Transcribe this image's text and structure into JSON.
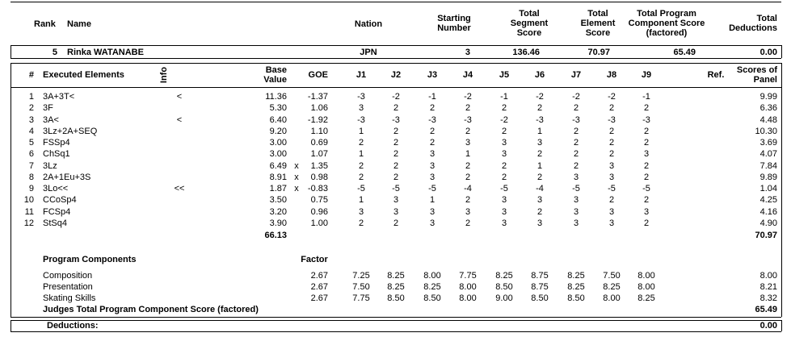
{
  "header": {
    "rank": "Rank",
    "name": "Name",
    "nation": "Nation",
    "starting_number": "Starting Number",
    "total_segment_score": "Total Segment Score",
    "total_element_score": "Total Element Score",
    "total_pcs": "Total Program Component Score (factored)",
    "total_deductions": "Total Deductions"
  },
  "skater": {
    "rank": "5",
    "name": "Rinka WATANABE",
    "nation": "JPN",
    "starting_number": "3",
    "total_segment_score": "136.46",
    "total_element_score": "70.97",
    "total_pcs": "65.49",
    "total_deductions": "0.00"
  },
  "elements": {
    "columns": {
      "num": "#",
      "element": "Executed Elements",
      "info": "Info",
      "base": "Base Value",
      "goe": "GOE",
      "judges": [
        "J1",
        "J2",
        "J3",
        "J4",
        "J5",
        "J6",
        "J7",
        "J8",
        "J9"
      ],
      "ref": "Ref.",
      "score": "Scores of Panel"
    },
    "rows": [
      {
        "num": "1",
        "element": "3A+3T<",
        "info": "<",
        "base": "11.36",
        "goe": "-1.37",
        "judges": [
          "-3",
          "-2",
          "-1",
          "-2",
          "-1",
          "-2",
          "-2",
          "-2",
          "-1"
        ],
        "score": "9.99"
      },
      {
        "num": "2",
        "element": "3F",
        "base": "5.30",
        "goe": "1.06",
        "judges": [
          "3",
          "2",
          "2",
          "2",
          "2",
          "2",
          "2",
          "2",
          "2"
        ],
        "score": "6.36"
      },
      {
        "num": "3",
        "element": "3A<",
        "info": "<",
        "base": "6.40",
        "goe": "-1.92",
        "judges": [
          "-3",
          "-3",
          "-3",
          "-3",
          "-2",
          "-3",
          "-3",
          "-3",
          "-3"
        ],
        "score": "4.48"
      },
      {
        "num": "4",
        "element": "3Lz+2A+SEQ",
        "base": "9.20",
        "goe": "1.10",
        "judges": [
          "1",
          "2",
          "2",
          "2",
          "2",
          "1",
          "2",
          "2",
          "2"
        ],
        "score": "10.30"
      },
      {
        "num": "5",
        "element": "FSSp4",
        "base": "3.00",
        "goe": "0.69",
        "judges": [
          "2",
          "2",
          "2",
          "3",
          "3",
          "3",
          "2",
          "2",
          "2"
        ],
        "score": "3.69"
      },
      {
        "num": "6",
        "element": "ChSq1",
        "base": "3.00",
        "goe": "1.07",
        "judges": [
          "1",
          "2",
          "3",
          "1",
          "3",
          "2",
          "2",
          "2",
          "3"
        ],
        "score": "4.07"
      },
      {
        "num": "7",
        "element": "3Lz",
        "base": "6.49",
        "x": "x",
        "goe": "1.35",
        "judges": [
          "2",
          "2",
          "3",
          "2",
          "2",
          "1",
          "2",
          "3",
          "2"
        ],
        "score": "7.84"
      },
      {
        "num": "8",
        "element": "2A+1Eu+3S",
        "base": "8.91",
        "x": "x",
        "goe": "0.98",
        "judges": [
          "2",
          "2",
          "3",
          "2",
          "2",
          "2",
          "3",
          "3",
          "2"
        ],
        "score": "9.89"
      },
      {
        "num": "9",
        "element": "3Lo<<",
        "info": "<<",
        "base": "1.87",
        "x": "x",
        "goe": "-0.83",
        "judges": [
          "-5",
          "-5",
          "-5",
          "-4",
          "-5",
          "-4",
          "-5",
          "-5",
          "-5"
        ],
        "score": "1.04"
      },
      {
        "num": "10",
        "element": "CCoSp4",
        "base": "3.50",
        "goe": "0.75",
        "judges": [
          "1",
          "3",
          "1",
          "2",
          "3",
          "3",
          "3",
          "2",
          "2"
        ],
        "score": "4.25"
      },
      {
        "num": "11",
        "element": "FCSp4",
        "base": "3.20",
        "goe": "0.96",
        "judges": [
          "3",
          "3",
          "3",
          "3",
          "3",
          "2",
          "3",
          "3",
          "3"
        ],
        "score": "4.16"
      },
      {
        "num": "12",
        "element": "StSq4",
        "base": "3.90",
        "goe": "1.00",
        "judges": [
          "2",
          "2",
          "3",
          "2",
          "3",
          "3",
          "3",
          "3",
          "2"
        ],
        "score": "4.90"
      }
    ],
    "total_base": "66.13",
    "total_score": "70.97"
  },
  "components": {
    "title": "Program Components",
    "factor_label": "Factor",
    "rows": [
      {
        "name": "Composition",
        "factor": "2.67",
        "judges": [
          "7.25",
          "8.25",
          "8.00",
          "7.75",
          "8.25",
          "8.75",
          "8.25",
          "7.50",
          "8.00"
        ],
        "score": "8.00"
      },
      {
        "name": "Presentation",
        "factor": "2.67",
        "judges": [
          "7.50",
          "8.25",
          "8.25",
          "8.00",
          "8.50",
          "8.75",
          "8.25",
          "8.25",
          "8.00"
        ],
        "score": "8.21"
      },
      {
        "name": "Skating Skills",
        "factor": "2.67",
        "judges": [
          "7.75",
          "8.50",
          "8.50",
          "8.00",
          "9.00",
          "8.50",
          "8.50",
          "8.00",
          "8.25"
        ],
        "score": "8.32"
      }
    ],
    "total_label": "Judges Total Program Component Score (factored)",
    "total": "65.49"
  },
  "deductions": {
    "label": "Deductions:",
    "value": "0.00"
  }
}
